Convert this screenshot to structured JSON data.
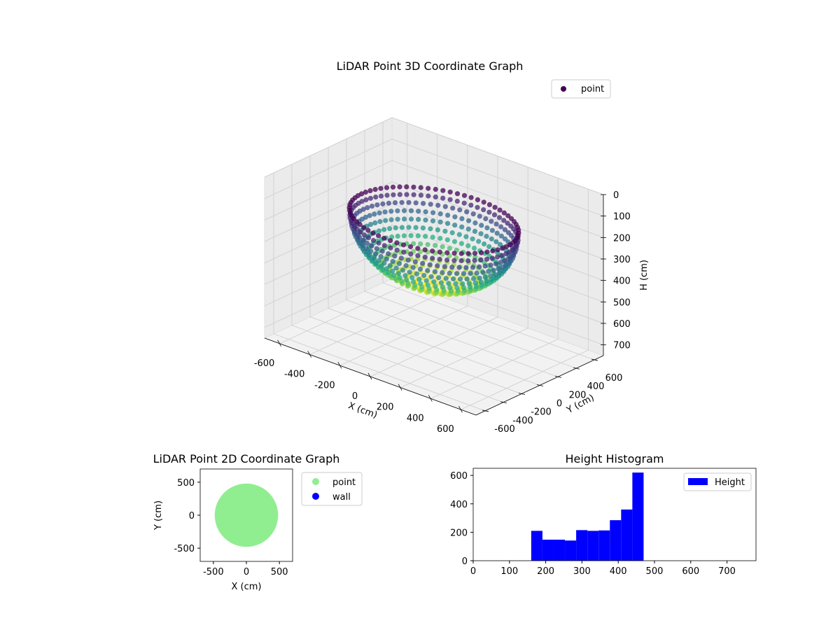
{
  "figure": {
    "background": "#ffffff"
  },
  "chart_data": [
    {
      "type": "scatter3d",
      "title": "LiDAR Point 3D Coordinate Graph",
      "xlabel": "X (cm)",
      "ylabel": "Y (cm)",
      "zlabel": "H (cm)",
      "xlim": [
        -700,
        700
      ],
      "ylim": [
        -700,
        700
      ],
      "zlim": [
        0,
        750
      ],
      "z_inverted": true,
      "xticks": [
        -600,
        -400,
        -200,
        0,
        200,
        400,
        600
      ],
      "yticks": [
        -600,
        -400,
        -200,
        0,
        200,
        400,
        600
      ],
      "zticks": [
        0,
        100,
        200,
        300,
        400,
        500,
        600,
        700
      ],
      "colormap": "viridis",
      "legend": [
        {
          "label": "point",
          "color": "#440154"
        }
      ],
      "series": [
        {
          "name": "point",
          "shape": "hemispherical bowl",
          "center": [
            0,
            0
          ],
          "rim_radius": 480,
          "rim_height": 160,
          "bottom_height": 470,
          "rings": 14,
          "points_per_ring": 72
        }
      ]
    },
    {
      "type": "scatter",
      "title": "LiDAR Point 2D Coordinate Graph",
      "xlabel": "X (cm)",
      "ylabel": "Y (cm)",
      "xlim": [
        -700,
        700
      ],
      "ylim": [
        -700,
        700
      ],
      "xticks": [
        -500,
        0,
        500
      ],
      "yticks": [
        -500,
        0,
        500
      ],
      "series": [
        {
          "name": "point",
          "color": "#90ee90",
          "center": [
            0,
            0
          ],
          "radius": 480
        },
        {
          "name": "wall",
          "color": "#0000ff",
          "values": []
        }
      ],
      "legend": [
        {
          "label": "point",
          "color": "#90ee90"
        },
        {
          "label": "wall",
          "color": "#0000ff"
        }
      ]
    },
    {
      "type": "histogram",
      "title": "Height Histogram",
      "xlim": [
        0,
        780
      ],
      "ylim": [
        0,
        650
      ],
      "xticks": [
        0,
        100,
        200,
        300,
        400,
        500,
        600,
        700
      ],
      "yticks": [
        0,
        200,
        400,
        600
      ],
      "color": "#0000ff",
      "legend": [
        {
          "label": "Height",
          "color": "#0000ff"
        }
      ],
      "bin_edges": [
        160,
        191,
        222,
        253,
        284,
        315,
        346,
        377,
        408,
        439,
        470
      ],
      "values": [
        210,
        148,
        148,
        142,
        215,
        210,
        213,
        285,
        360,
        620
      ]
    }
  ]
}
